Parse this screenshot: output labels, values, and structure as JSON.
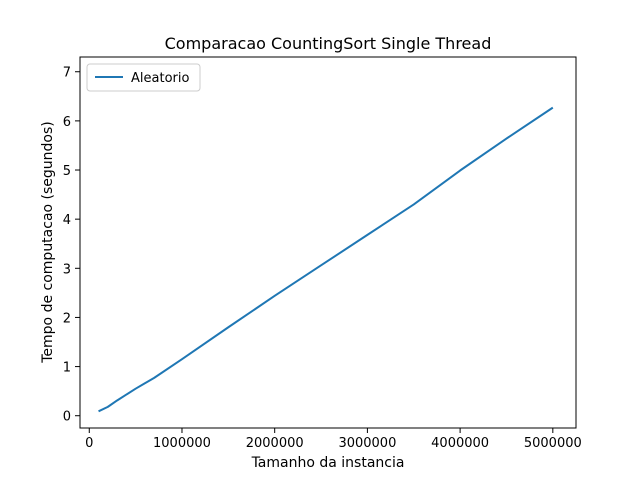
{
  "chart_data": {
    "type": "line",
    "title": "Comparacao CountingSort Single Thread",
    "xlabel": "Tamanho da instancia",
    "ylabel": "Tempo de computacao (segundos)",
    "xlim": [
      -100000,
      5250000
    ],
    "ylim": [
      -0.25,
      7.3
    ],
    "xticks": [
      {
        "value": 0,
        "label": "0"
      },
      {
        "value": 1000000,
        "label": "1000000"
      },
      {
        "value": 2000000,
        "label": "2000000"
      },
      {
        "value": 3000000,
        "label": "3000000"
      },
      {
        "value": 4000000,
        "label": "4000000"
      },
      {
        "value": 5000000,
        "label": "5000000"
      }
    ],
    "yticks": [
      {
        "value": 0,
        "label": "0"
      },
      {
        "value": 1,
        "label": "1"
      },
      {
        "value": 2,
        "label": "2"
      },
      {
        "value": 3,
        "label": "3"
      },
      {
        "value": 4,
        "label": "4"
      },
      {
        "value": 5,
        "label": "5"
      },
      {
        "value": 6,
        "label": "6"
      },
      {
        "value": 7,
        "label": "7"
      }
    ],
    "grid": false,
    "legend_position": "top-left",
    "series": [
      {
        "name": "Aleatorio",
        "color": "#1f77b4",
        "x": [
          100000,
          200000,
          300000,
          400000,
          500000,
          600000,
          700000,
          1000000,
          1500000,
          2000000,
          2500000,
          3000000,
          3500000,
          4000000,
          4500000,
          5000000
        ],
        "y": [
          0.09,
          0.18,
          0.31,
          0.43,
          0.55,
          0.66,
          0.77,
          1.15,
          1.8,
          2.44,
          3.06,
          3.68,
          4.3,
          4.99,
          5.64,
          6.27
        ]
      }
    ]
  }
}
